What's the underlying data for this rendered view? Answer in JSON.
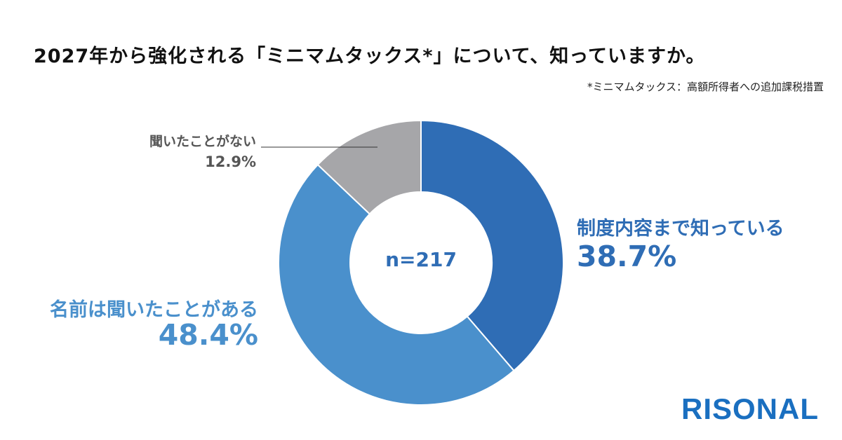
{
  "header": {
    "title": "2027年から強化される「ミニマムタックス*」について、知っていますか。",
    "footnote": "*ミニマムタックス：高額所得者への追加課税措置"
  },
  "chart_data": {
    "type": "pie",
    "variant": "donut",
    "categories": [
      "制度内容まで知っている",
      "名前は聞いたことがある",
      "聞いたことがない"
    ],
    "values": [
      38.7,
      48.4,
      12.9
    ],
    "value_labels": [
      "38.7%",
      "48.4%",
      "12.9%"
    ],
    "colors": [
      "#2f6db5",
      "#4a90cc",
      "#a6a6a9"
    ],
    "center_label": "n=217",
    "legend": "none"
  },
  "brand": {
    "logo_text": "RISONAL",
    "color": "#1a6fc0"
  }
}
